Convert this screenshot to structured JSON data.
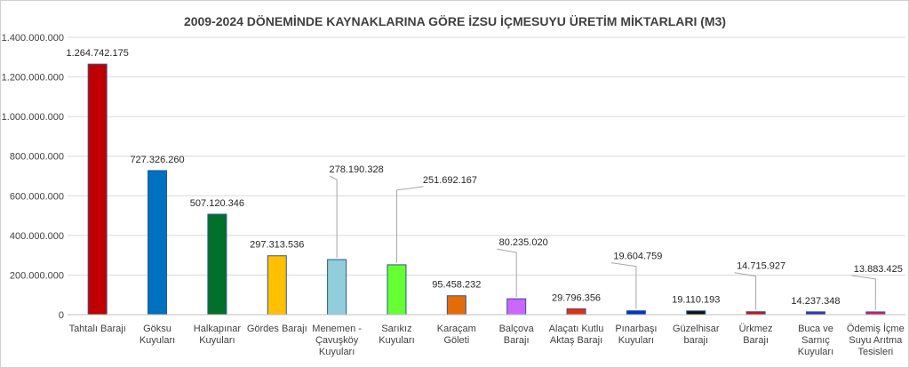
{
  "chart_data": {
    "type": "bar",
    "title": "2009-2024 DÖNEMİNDE KAYNAKLARINA GÖRE İZSU İÇMESUYU ÜRETİM MİKTARLARI (M3)",
    "xlabel": "",
    "ylabel": "",
    "ylim": [
      0,
      1400000000
    ],
    "yticks": [
      0,
      200000000,
      400000000,
      600000000,
      800000000,
      1000000000,
      1200000000,
      1400000000
    ],
    "ytick_labels": [
      "0",
      "200.000.000",
      "400.000.000",
      "600.000.000",
      "800.000.000",
      "1.000.000.000",
      "1.200.000.000",
      "1.400.000.000"
    ],
    "grid": true,
    "legend": "none",
    "categories": [
      [
        "Tahtalı Barajı"
      ],
      [
        "Göksu",
        "Kuyuları"
      ],
      [
        "Halkapınar",
        "Kuyuları"
      ],
      [
        "Gördes Barajı"
      ],
      [
        "Menemen -",
        "Çavuşköy",
        "Kuyuları"
      ],
      [
        "Sarıkız",
        "Kuyuları"
      ],
      [
        "Karaçam",
        "Göleti"
      ],
      [
        "Balçova",
        "Barajı"
      ],
      [
        "Alaçatı Kutlu",
        "Aktaş Barajı"
      ],
      [
        "Pınarbaşı",
        "Kuyuları"
      ],
      [
        "Güzelhisar",
        "barajı"
      ],
      [
        "Ürkmez",
        "Barajı"
      ],
      [
        "Buca ve",
        "Sarnıç",
        "Kuyuları"
      ],
      [
        "Ödemiş İçme",
        "Suyu Arıtma",
        "Tesisleri"
      ]
    ],
    "values": [
      1264742175,
      727326260,
      507120346,
      297313536,
      278190328,
      251692167,
      95458232,
      80235020,
      29796356,
      19604759,
      19110193,
      14715927,
      14237348,
      13883425
    ],
    "data_labels": [
      "1.264.742.175",
      "727.326.260",
      "507.120.346",
      "297.313.536",
      "278.190.328",
      "251.692.167",
      "95.458.232",
      "80.235.020",
      "29.796.356",
      "19.604.759",
      "19.110.193",
      "14.715.927",
      "14.237.348",
      "13.883.425"
    ],
    "bar_colors": [
      "#c00000",
      "#0070c0",
      "#00702a",
      "#ffc000",
      "#92cddc",
      "#66ff33",
      "#e26b0a",
      "#cc66ff",
      "#e03010",
      "#0033cc",
      "#111111",
      "#cc1111",
      "#3333aa",
      "#d9186b"
    ],
    "bar_border": "#2f5597"
  }
}
